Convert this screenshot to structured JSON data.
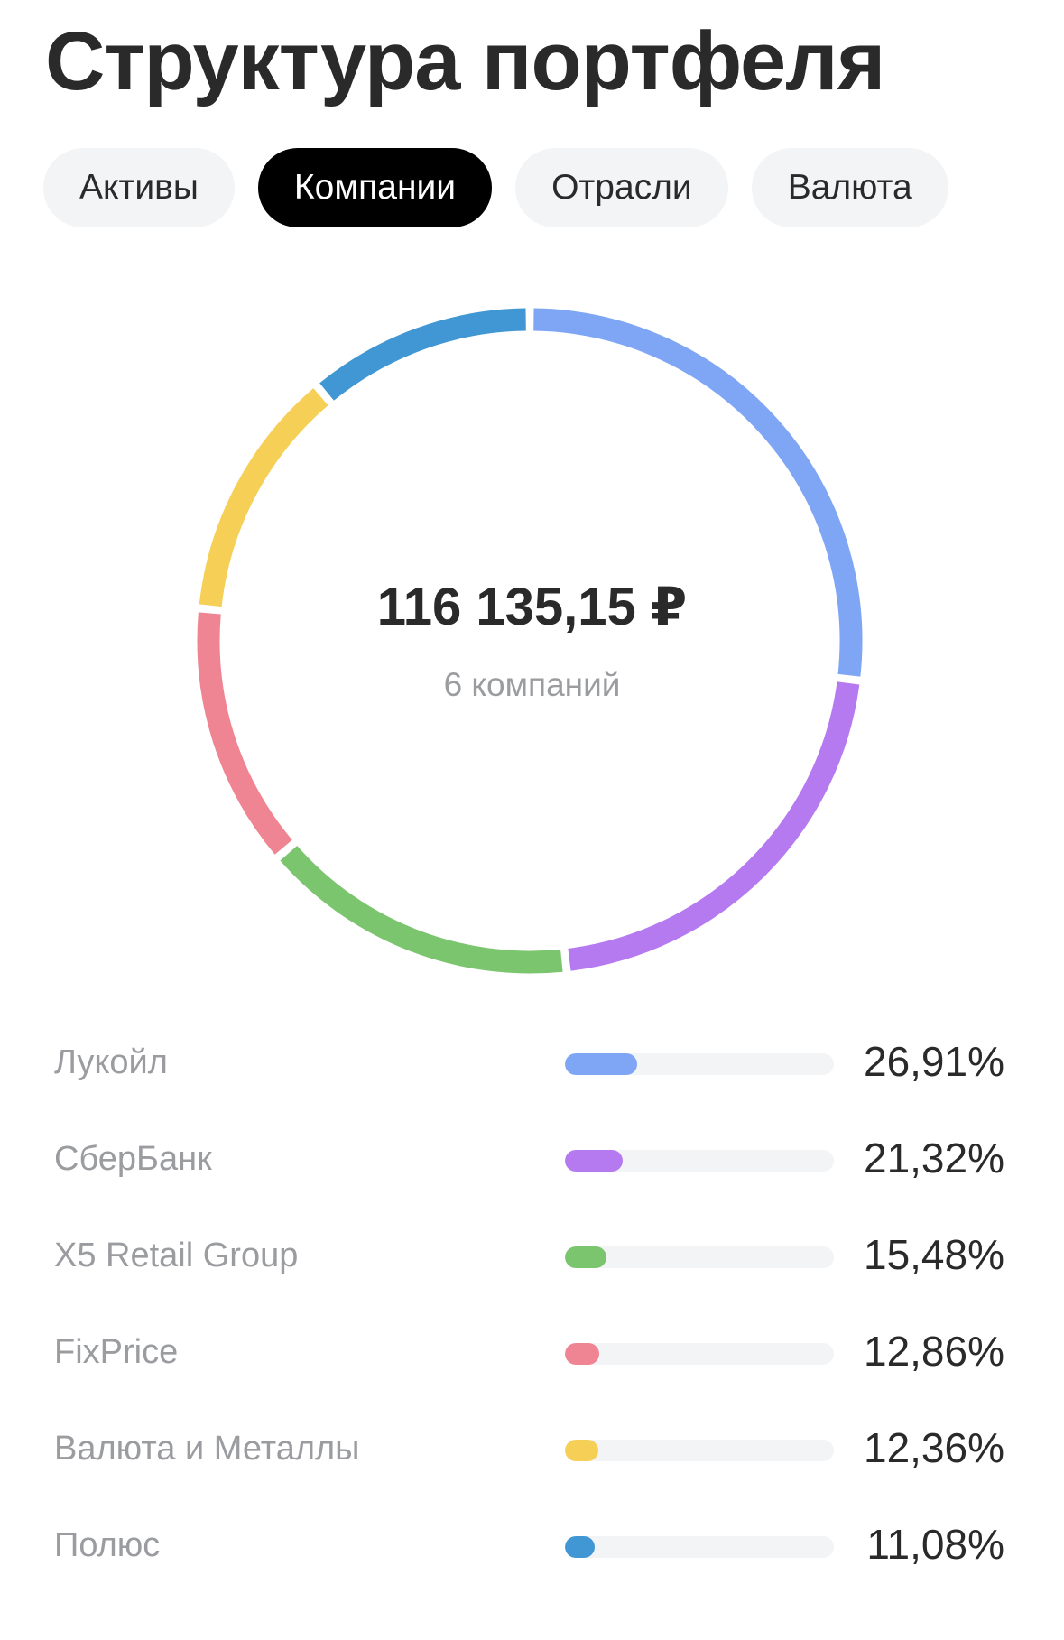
{
  "title": "Структура портфеля",
  "tabs": [
    {
      "label": "Активы",
      "active": false
    },
    {
      "label": "Компании",
      "active": true
    },
    {
      "label": "Отрасли",
      "active": false
    },
    {
      "label": "Валюта",
      "active": false
    }
  ],
  "summary": {
    "total": "116 135,15 ₽",
    "subtitle": "6 компаний"
  },
  "holdings": [
    {
      "name": "Лукойл",
      "percent_label": "26,91%",
      "percent": 26.91,
      "color": "#7ea6f4"
    },
    {
      "name": "СберБанк",
      "percent_label": "21,32%",
      "percent": 21.32,
      "color": "#b57af0"
    },
    {
      "name": "X5 Retail Group",
      "percent_label": "15,48%",
      "percent": 15.48,
      "color": "#7cc56f"
    },
    {
      "name": "FixPrice",
      "percent_label": "12,86%",
      "percent": 12.86,
      "color": "#ef8593"
    },
    {
      "name": "Валюта и Металлы",
      "percent_label": "12,36%",
      "percent": 12.36,
      "color": "#f6cf57"
    },
    {
      "name": "Полюс",
      "percent_label": "11,08%",
      "percent": 11.08,
      "color": "#4097d3"
    }
  ]
}
